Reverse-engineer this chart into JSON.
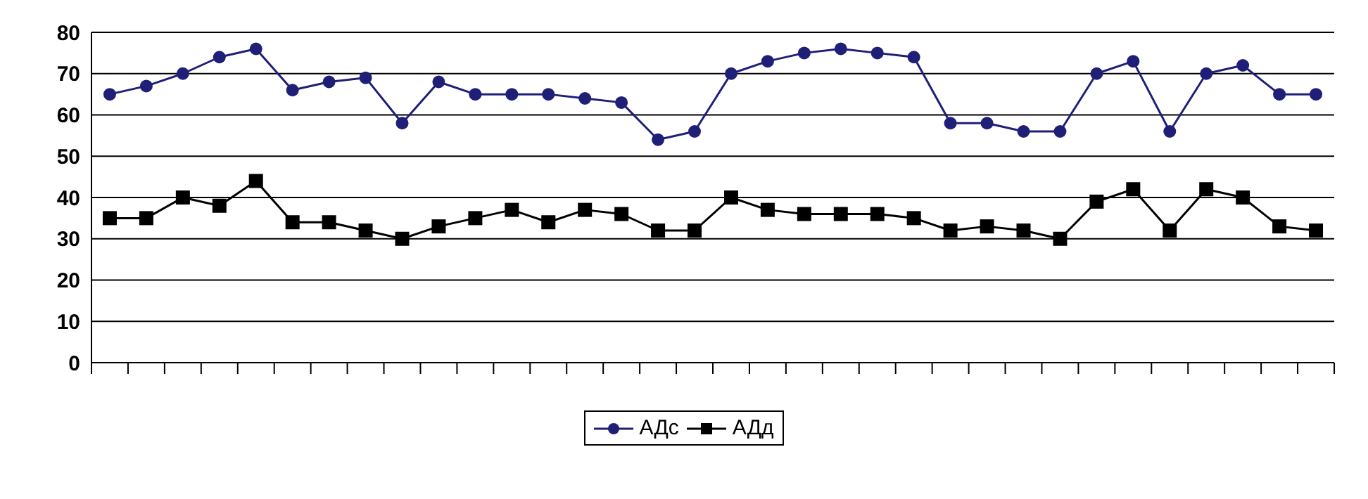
{
  "chart_data": {
    "type": "line",
    "categories": [
      null,
      null,
      null,
      null,
      null,
      null,
      null,
      null,
      null,
      null,
      null,
      null,
      null,
      null,
      null,
      null,
      null,
      null,
      null,
      null,
      null,
      null,
      null,
      null,
      null,
      null,
      null,
      null,
      null,
      null,
      null,
      null,
      null,
      null
    ],
    "series": [
      {
        "name": "АДс",
        "color": "#1f1f78",
        "marker": "circle",
        "values": [
          65,
          67,
          70,
          74,
          76,
          66,
          68,
          69,
          58,
          68,
          65,
          65,
          65,
          64,
          63,
          54,
          56,
          70,
          73,
          75,
          76,
          75,
          74,
          58,
          58,
          56,
          56,
          70,
          73,
          56,
          70,
          72,
          65,
          65
        ]
      },
      {
        "name": "АДд",
        "color": "#000000",
        "marker": "square",
        "values": [
          35,
          35,
          40,
          38,
          44,
          34,
          34,
          32,
          30,
          33,
          35,
          37,
          34,
          37,
          36,
          32,
          32,
          40,
          37,
          36,
          36,
          36,
          35,
          32,
          33,
          32,
          30,
          39,
          42,
          32,
          42,
          40,
          33,
          32
        ]
      }
    ],
    "ylim": [
      0,
      80
    ],
    "yticks": [
      0,
      10,
      20,
      30,
      40,
      50,
      60,
      70,
      80
    ],
    "grid": "y",
    "legend": "bottom"
  }
}
